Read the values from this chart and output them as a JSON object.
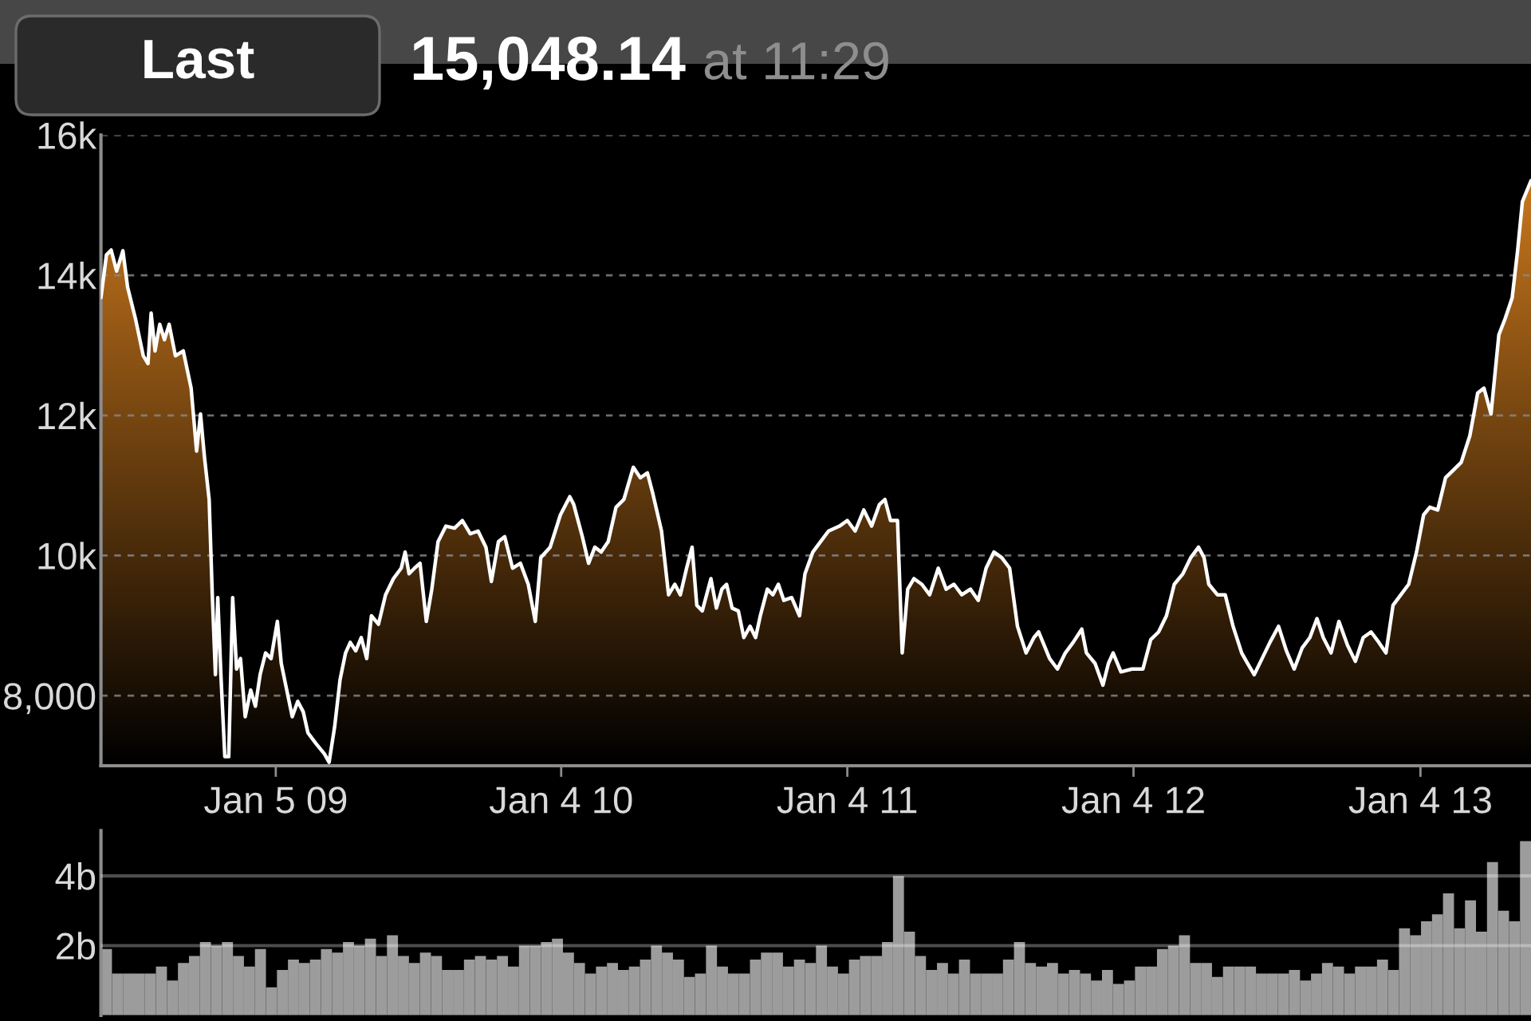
{
  "chart_data": [
    {
      "type": "area",
      "title": "15,048.14",
      "subtitle": "at 11:29",
      "annotations": [
        "Last"
      ],
      "x": [
        "2008-05-27",
        "2008-06-03",
        "2008-06-09",
        "2008-06-16",
        "2008-06-24",
        "2008-06-30",
        "2008-07-10",
        "2008-07-20",
        "2008-07-26",
        "2008-07-30",
        "2008-08-04",
        "2008-08-10",
        "2008-08-16",
        "2008-08-22",
        "2008-08-30",
        "2008-09-09",
        "2008-09-19",
        "2008-09-26",
        "2008-10-01",
        "2008-10-06",
        "2008-10-12",
        "2008-10-16",
        "2008-10-20",
        "2008-10-23",
        "2008-10-27",
        "2008-11-01",
        "2008-11-06",
        "2008-11-11",
        "2008-11-16",
        "2008-11-21",
        "2008-11-27",
        "2008-12-04",
        "2008-12-10",
        "2008-12-16",
        "2008-12-23",
        "2008-12-30",
        "2009-01-07",
        "2009-01-12",
        "2009-01-19",
        "2009-01-26",
        "2009-02-02",
        "2009-02-09",
        "2009-02-15",
        "2009-02-25",
        "2009-03-08",
        "2009-03-14",
        "2009-03-21",
        "2009-03-28",
        "2009-04-04",
        "2009-04-10",
        "2009-04-17",
        "2009-04-24",
        "2009-05-01",
        "2009-05-07",
        "2009-05-16",
        "2009-05-25",
        "2009-06-04",
        "2009-06-14",
        "2009-06-19",
        "2009-06-24",
        "2009-07-01",
        "2009-07-08",
        "2009-07-16",
        "2009-07-23",
        "2009-07-31",
        "2009-08-10",
        "2009-08-21",
        "2009-08-31",
        "2009-09-10",
        "2009-09-20",
        "2009-09-30",
        "2009-10-07",
        "2009-10-16",
        "2009-10-24",
        "2009-11-03",
        "2009-11-13",
        "2009-11-23",
        "2009-12-02",
        "2009-12-09",
        "2009-12-21",
        "2010-01-03",
        "2010-01-15",
        "2010-01-20",
        "2010-01-31",
        "2010-02-08",
        "2010-02-16",
        "2010-02-24",
        "2010-03-05",
        "2010-03-15",
        "2010-03-25",
        "2010-04-06",
        "2010-04-15",
        "2010-04-24",
        "2010-05-01",
        "2010-05-12",
        "2010-05-21",
        "2010-05-29",
        "2010-06-05",
        "2010-06-13",
        "2010-06-20",
        "2010-06-26",
        "2010-07-03",
        "2010-07-14",
        "2010-07-21",
        "2010-07-28",
        "2010-08-03",
        "2010-08-10",
        "2010-08-18",
        "2010-08-25",
        "2010-09-02",
        "2010-09-09",
        "2010-09-15",
        "2010-09-24",
        "2010-10-01",
        "2010-10-08",
        "2010-10-15",
        "2010-10-25",
        "2010-11-04",
        "2010-11-11",
        "2010-11-21",
        "2010-12-01",
        "2010-12-11",
        "2010-12-25",
        "2011-01-04",
        "2011-01-14",
        "2011-01-25",
        "2011-02-04",
        "2011-02-14",
        "2011-02-21",
        "2011-02-28",
        "2011-03-09",
        "2011-03-15",
        "2011-03-22",
        "2011-03-30",
        "2011-04-09",
        "2011-04-19",
        "2011-04-30",
        "2011-05-10",
        "2011-05-20",
        "2011-05-30",
        "2011-06-10",
        "2011-06-20",
        "2011-06-30",
        "2011-07-10",
        "2011-07-20",
        "2011-07-30",
        "2011-08-09",
        "2011-08-20",
        "2011-08-30",
        "2011-09-05",
        "2011-09-19",
        "2011-09-29",
        "2011-10-09",
        "2011-10-19",
        "2011-10-30",
        "2011-11-05",
        "2011-11-16",
        "2011-11-26",
        "2011-12-03",
        "2011-12-09",
        "2011-12-19",
        "2012-01-02",
        "2012-01-16",
        "2012-01-26",
        "2012-02-05",
        "2012-02-15",
        "2012-02-25",
        "2012-03-07",
        "2012-03-17",
        "2012-03-27",
        "2012-04-03",
        "2012-04-09",
        "2012-04-20",
        "2012-04-30",
        "2012-05-10",
        "2012-05-21",
        "2012-05-27",
        "2012-06-06",
        "2012-06-16",
        "2012-06-26",
        "2012-07-07",
        "2012-07-17",
        "2012-07-27",
        "2012-08-06",
        "2012-08-16",
        "2012-08-25",
        "2012-09-02",
        "2012-09-12",
        "2012-09-22",
        "2012-10-03",
        "2012-10-13",
        "2012-10-23",
        "2012-11-02",
        "2012-11-12",
        "2012-11-21",
        "2012-11-30",
        "2012-12-10",
        "2012-12-20",
        "2012-12-30",
        "2013-01-08",
        "2013-01-16",
        "2013-01-26",
        "2013-02-05",
        "2013-02-15",
        "2013-02-25",
        "2013-03-08",
        "2013-03-18",
        "2013-03-26",
        "2013-04-04",
        "2013-04-14",
        "2013-04-22",
        "2013-05-01",
        "2013-05-08",
        "2013-05-14",
        "2013-05-25"
      ],
      "values": [
        13680,
        14290,
        14360,
        14060,
        14350,
        13830,
        13380,
        12850,
        12740,
        13460,
        12920,
        13300,
        13080,
        13300,
        12850,
        12920,
        12390,
        11490,
        12020,
        11410,
        10800,
        9440,
        8300,
        9400,
        8300,
        7130,
        7130,
        9400,
        8380,
        8530,
        7700,
        8080,
        7850,
        8300,
        8610,
        8530,
        9060,
        8460,
        8080,
        7700,
        7920,
        7770,
        7470,
        7320,
        7170,
        7050,
        7550,
        8230,
        8610,
        8760,
        8640,
        8830,
        8530,
        9140,
        9020,
        9440,
        9670,
        9820,
        10050,
        9740,
        9820,
        9890,
        9060,
        9520,
        10200,
        10420,
        10390,
        10500,
        10310,
        10350,
        10120,
        9630,
        10200,
        10270,
        9820,
        9890,
        9590,
        9060,
        9970,
        10120,
        10580,
        10840,
        10730,
        10270,
        9890,
        10120,
        10050,
        10200,
        10690,
        10800,
        11260,
        11110,
        11180,
        10880,
        10350,
        9440,
        9590,
        9440,
        9820,
        10120,
        9290,
        9210,
        9670,
        9250,
        9520,
        9590,
        9250,
        9210,
        8830,
        8990,
        8830,
        9140,
        9520,
        9440,
        9590,
        9360,
        9400,
        9140,
        9740,
        10050,
        10200,
        10350,
        10420,
        10500,
        10350,
        10650,
        10420,
        10730,
        10800,
        10500,
        10500,
        8610,
        9520,
        9670,
        9590,
        9440,
        9820,
        9520,
        9590,
        9440,
        9520,
        9360,
        9820,
        10050,
        9970,
        9820,
        8990,
        8610,
        8830,
        8910,
        8530,
        8380,
        8610,
        8760,
        8950,
        8610,
        8460,
        8150,
        8460,
        8610,
        8340,
        8380,
        8380,
        8800,
        8910,
        9140,
        9590,
        9740,
        9970,
        10120,
        9970,
        9590,
        9440,
        9440,
        8990,
        8610,
        8490,
        8300,
        8530,
        8760,
        8990,
        8640,
        8380,
        8680,
        8830,
        9100,
        8830,
        8610,
        9060,
        8720,
        8490,
        8830,
        8910,
        8760,
        8610,
        9290,
        9440,
        9590,
        10050,
        10580,
        10690,
        10650,
        11110,
        11220,
        11330,
        11710,
        12320,
        12390,
        12020,
        13150,
        13380,
        13680,
        14360,
        15050,
        15350
      ],
      "color": "#d8801f",
      "xlim": [
        "2008-05-27",
        "2013-05-25"
      ],
      "ylim": [
        7000,
        16000
      ],
      "xticks": [
        {
          "value": "2009-01-05",
          "label": "Jan 5 09"
        },
        {
          "value": "2010-01-04",
          "label": "Jan 4 10"
        },
        {
          "value": "2011-01-04",
          "label": "Jan 4 11"
        },
        {
          "value": "2012-01-04",
          "label": "Jan 4 12"
        },
        {
          "value": "2013-01-04",
          "label": "Jan 4 13"
        }
      ],
      "yticks": [
        {
          "value": 8000,
          "label": "8,000"
        },
        {
          "value": 10000,
          "label": "10k"
        },
        {
          "value": 12000,
          "label": "12k"
        },
        {
          "value": 14000,
          "label": "14k"
        },
        {
          "value": 16000,
          "label": "16k"
        }
      ],
      "grid": "y"
    },
    {
      "type": "bar",
      "categories": [
        null,
        null,
        null,
        null,
        null,
        null,
        null,
        null,
        null,
        null,
        null,
        null,
        null,
        null,
        null,
        null,
        null,
        null,
        null,
        null,
        null,
        null,
        null,
        null,
        null,
        null,
        null,
        null,
        null,
        null,
        null,
        null,
        null,
        null,
        null,
        null,
        null,
        null,
        null,
        null,
        null,
        null,
        null,
        null,
        null,
        null,
        null,
        null,
        null,
        null,
        null,
        null,
        null,
        null,
        null,
        null,
        null,
        null,
        null,
        null,
        null,
        null,
        null,
        null,
        null,
        null,
        null,
        null,
        null,
        null,
        null,
        null,
        null,
        null,
        null,
        null,
        null,
        null,
        null,
        null,
        null,
        null,
        null,
        null,
        null,
        null,
        null,
        null,
        null,
        null,
        null,
        null,
        null,
        null,
        null,
        null,
        null,
        null,
        null,
        null,
        null,
        null,
        null,
        null,
        null,
        null,
        null,
        null,
        null,
        null,
        null,
        null,
        null,
        null,
        null,
        null,
        null,
        null,
        null,
        null,
        null,
        null,
        null,
        null,
        null,
        null,
        null,
        null,
        null,
        null
      ],
      "values": [
        1.9,
        1.2,
        1.2,
        1.2,
        1.2,
        1.4,
        1.0,
        1.5,
        1.7,
        2.1,
        2.0,
        2.1,
        1.7,
        1.4,
        1.9,
        0.8,
        1.3,
        1.6,
        1.5,
        1.6,
        1.9,
        1.8,
        2.1,
        2.0,
        2.2,
        1.7,
        2.3,
        1.7,
        1.5,
        1.8,
        1.7,
        1.3,
        1.3,
        1.6,
        1.7,
        1.6,
        1.7,
        1.4,
        2.0,
        2.0,
        2.1,
        2.2,
        1.8,
        1.5,
        1.2,
        1.4,
        1.5,
        1.3,
        1.4,
        1.6,
        2.0,
        1.8,
        1.6,
        1.1,
        1.2,
        2.0,
        1.4,
        1.2,
        1.2,
        1.6,
        1.8,
        1.8,
        1.4,
        1.6,
        1.5,
        2.0,
        1.4,
        1.2,
        1.6,
        1.7,
        1.7,
        2.1,
        4.0,
        2.4,
        1.7,
        1.3,
        1.5,
        1.2,
        1.6,
        1.2,
        1.2,
        1.2,
        1.6,
        2.1,
        1.5,
        1.4,
        1.5,
        1.2,
        1.3,
        1.2,
        1.0,
        1.3,
        0.9,
        1.0,
        1.4,
        1.4,
        1.9,
        2.0,
        2.3,
        1.5,
        1.5,
        1.1,
        1.4,
        1.4,
        1.4,
        1.2,
        1.2,
        1.2,
        1.3,
        1.0,
        1.2,
        1.5,
        1.4,
        1.2,
        1.4,
        1.4,
        1.6,
        1.3,
        2.5,
        2.3,
        2.7,
        2.9,
        3.5,
        2.5,
        3.3,
        2.4,
        4.4,
        3.0,
        2.7,
        5.0
      ],
      "color": "#9c9c9c",
      "ylim": [
        0,
        5.3
      ],
      "yticks": [
        {
          "value": 2,
          "label": "2b"
        },
        {
          "value": 4,
          "label": "4b"
        }
      ],
      "grid": "y",
      "tick_labels": "y"
    }
  ]
}
